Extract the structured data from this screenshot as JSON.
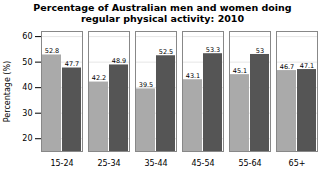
{
  "chart_data": {
    "type": "bar",
    "title": "Percentage of Australian men and women doing\nregular physical activity: 2010",
    "categories": [
      "15-24",
      "25-34",
      "35-44",
      "45-54",
      "55-64",
      "65+"
    ],
    "series": [
      {
        "color": "#aaaaaa",
        "values": [
          52.8,
          42.2,
          39.5,
          43.1,
          45.1,
          46.7
        ]
      },
      {
        "color": "#555555",
        "values": [
          47.7,
          48.9,
          52.5,
          53.3,
          53.0,
          47.1
        ]
      }
    ],
    "ylabel": "Percentage (%)",
    "ylim": [
      15,
      62
    ],
    "yticks": [
      20,
      30,
      40,
      50,
      60
    ],
    "grid": true,
    "data_labels": true
  }
}
